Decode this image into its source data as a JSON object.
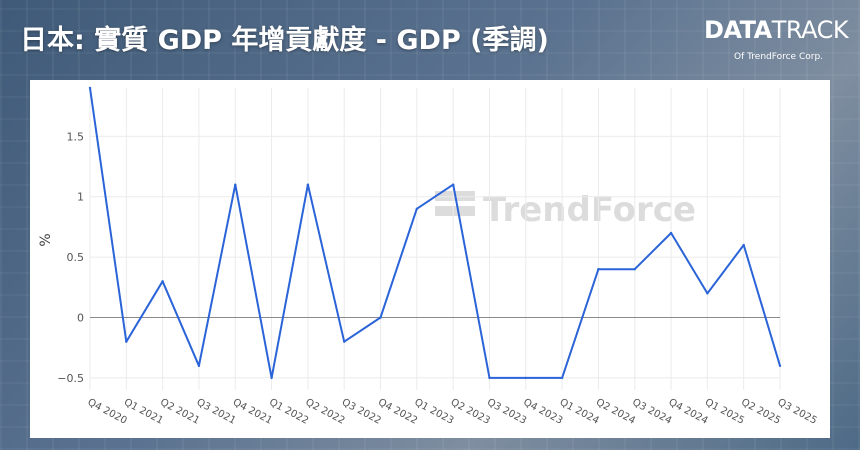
{
  "header": {
    "title": "日本: 實質 GDP 年增貢獻度 - GDP (季調)"
  },
  "logo": {
    "main_bold": "DATA",
    "main_light": "TRACK",
    "sub": "Of TrendForce Corp."
  },
  "watermark": {
    "text": "TrendForce"
  },
  "colors": {
    "line": "#2a64d8",
    "zero_line": "#8a8a8a",
    "grid": "#ebebeb"
  },
  "chart_data": {
    "type": "line",
    "title": "日本: 實質 GDP 年增貢獻度 - GDP (季調)",
    "xlabel": "",
    "ylabel": "%",
    "ylim": [
      -0.6,
      1.9
    ],
    "yticks": [
      -0.5,
      0,
      0.5,
      1,
      1.5
    ],
    "ytick_labels": [
      "−0.5",
      "0",
      "0.5",
      "1",
      "1.5"
    ],
    "grid": true,
    "categories": [
      "Q4 2020",
      "Q1 2021",
      "Q2 2021",
      "Q3 2021",
      "Q4 2021",
      "Q1 2022",
      "Q2 2022",
      "Q3 2022",
      "Q4 2022",
      "Q1 2023",
      "Q2 2023",
      "Q3 2023",
      "Q4 2023",
      "Q1 2024",
      "Q2 2024",
      "Q3 2024",
      "Q4 2024",
      "Q1 2025",
      "Q2 2025",
      "Q3 2025"
    ],
    "series": [
      {
        "values": [
          1.9,
          -0.2,
          0.3,
          -0.4,
          1.1,
          -0.5,
          1.1,
          -0.2,
          0.0,
          0.9,
          1.1,
          -0.5,
          -0.5,
          -0.5,
          0.4,
          0.4,
          0.7,
          0.2,
          0.6,
          -0.4
        ]
      }
    ]
  }
}
